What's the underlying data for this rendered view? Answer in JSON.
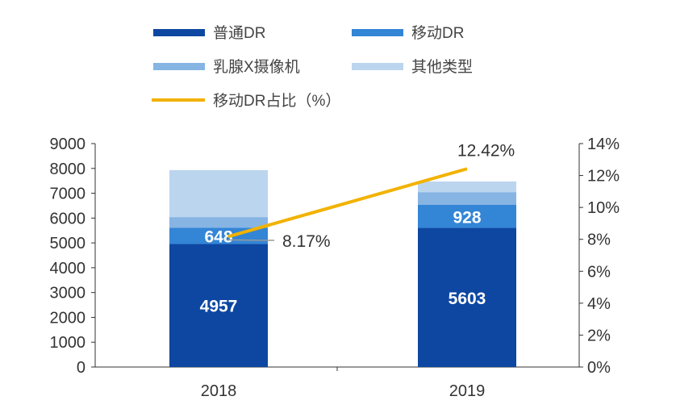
{
  "chart_data": {
    "type": "bar",
    "stacked": true,
    "categories": [
      "2018",
      "2019"
    ],
    "series": [
      {
        "name": "普通DR",
        "values": [
          4957,
          5603
        ],
        "color": "#0d47a1",
        "labels": [
          "4957",
          "5603"
        ]
      },
      {
        "name": "移动DR",
        "values": [
          648,
          928
        ],
        "color": "#3385d6",
        "labels": [
          "648",
          "928"
        ]
      },
      {
        "name": "乳腺X摄像机",
        "values": [
          435,
          514
        ],
        "color": "#86b4e3"
      },
      {
        "name": "其他类型",
        "values": [
          1891,
          427
        ],
        "color": "#bcd5ef"
      }
    ],
    "line_series": {
      "name": "移动DR占比（%）",
      "values": [
        8.17,
        12.42
      ],
      "labels": [
        "8.17%",
        "12.42%"
      ],
      "color": "#f2b200",
      "axis": "right"
    },
    "ylim": [
      0,
      9000
    ],
    "yticks": [
      "0",
      "1000",
      "2000",
      "3000",
      "4000",
      "5000",
      "6000",
      "7000",
      "8000",
      "9000"
    ],
    "y2lim": [
      0,
      14
    ],
    "y2ticks": [
      "0%",
      "2%",
      "4%",
      "6%",
      "8%",
      "10%",
      "12%",
      "14%"
    ],
    "grid": false,
    "legend_position": "top"
  }
}
